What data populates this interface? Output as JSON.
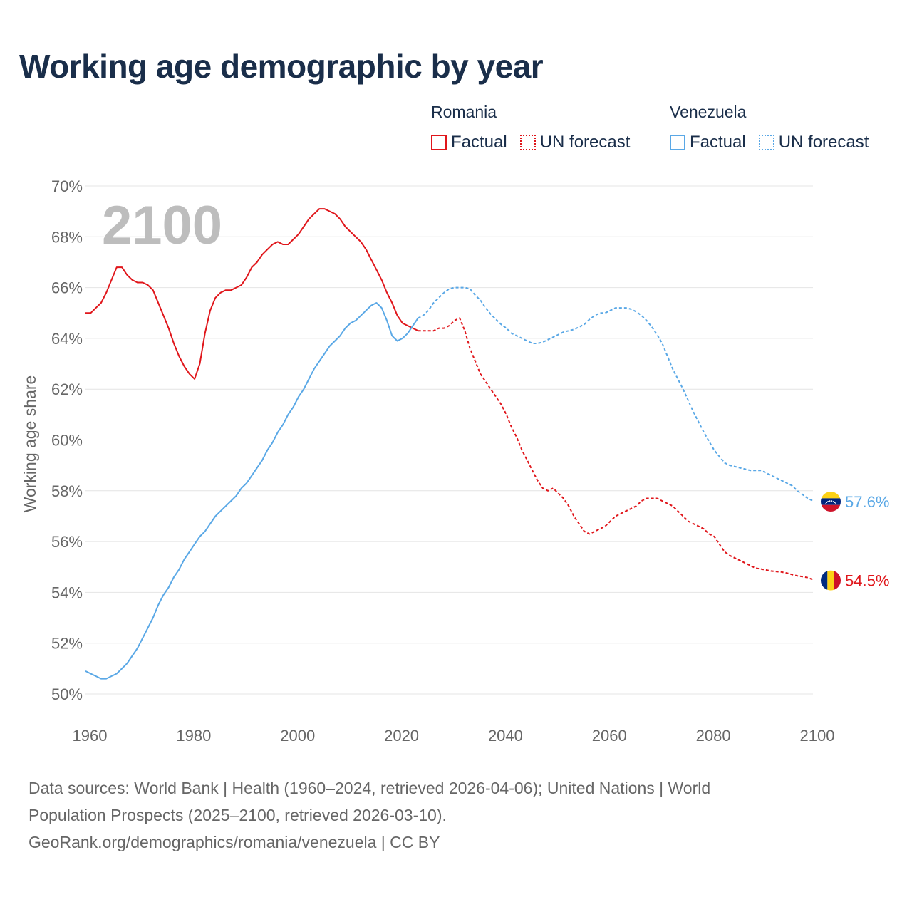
{
  "title": "Working age demographic by year",
  "legend": {
    "groups": [
      {
        "name": "Romania",
        "color": "#e0161b",
        "items": [
          {
            "label": "Factual",
            "style": "solid"
          },
          {
            "label": "UN forecast",
            "style": "dotted"
          }
        ]
      },
      {
        "name": "Venezuela",
        "color": "#5aa8e6",
        "items": [
          {
            "label": "Factual",
            "style": "solid"
          },
          {
            "label": "UN forecast",
            "style": "dotted"
          }
        ]
      }
    ]
  },
  "footer": {
    "line1": "Data sources: World Bank | Health (1960–2024, retrieved 2026-04-06); United Nations | World",
    "line2": "Population Prospects (2025–2100, retrieved 2026-03-10).",
    "line3": "GeoRank.org/demographics/romania/venezuela | CC BY"
  },
  "chart_data": {
    "type": "line",
    "title": "Working age demographic by year",
    "year_watermark": "2100",
    "xlabel": "",
    "ylabel": "Working age share",
    "xlim": [
      1960,
      2100
    ],
    "ylim": [
      50,
      70
    ],
    "x_ticks": [
      1960,
      1980,
      2000,
      2020,
      2040,
      2060,
      2080,
      2100
    ],
    "y_ticks": [
      50,
      52,
      54,
      56,
      58,
      60,
      62,
      64,
      66,
      68,
      70
    ],
    "y_tick_labels": [
      "50%",
      "52%",
      "54%",
      "56%",
      "58%",
      "60%",
      "62%",
      "64%",
      "66%",
      "68%",
      "70%"
    ],
    "factual_end_year": 2024,
    "series": [
      {
        "name": "Romania",
        "color": "#e0161b",
        "end_label": "54.5%",
        "flag": "romania-flag",
        "points": [
          [
            1960,
            65.0
          ],
          [
            1961,
            65.0
          ],
          [
            1962,
            65.2
          ],
          [
            1963,
            65.4
          ],
          [
            1964,
            65.8
          ],
          [
            1965,
            66.3
          ],
          [
            1966,
            66.8
          ],
          [
            1967,
            66.8
          ],
          [
            1968,
            66.5
          ],
          [
            1969,
            66.3
          ],
          [
            1970,
            66.2
          ],
          [
            1971,
            66.2
          ],
          [
            1972,
            66.1
          ],
          [
            1973,
            65.9
          ],
          [
            1974,
            65.4
          ],
          [
            1975,
            64.9
          ],
          [
            1976,
            64.4
          ],
          [
            1977,
            63.8
          ],
          [
            1978,
            63.3
          ],
          [
            1979,
            62.9
          ],
          [
            1980,
            62.6
          ],
          [
            1981,
            62.4
          ],
          [
            1982,
            63.0
          ],
          [
            1983,
            64.2
          ],
          [
            1984,
            65.1
          ],
          [
            1985,
            65.6
          ],
          [
            1986,
            65.8
          ],
          [
            1987,
            65.9
          ],
          [
            1988,
            65.9
          ],
          [
            1989,
            66.0
          ],
          [
            1990,
            66.1
          ],
          [
            1991,
            66.4
          ],
          [
            1992,
            66.8
          ],
          [
            1993,
            67.0
          ],
          [
            1994,
            67.3
          ],
          [
            1995,
            67.5
          ],
          [
            1996,
            67.7
          ],
          [
            1997,
            67.8
          ],
          [
            1998,
            67.7
          ],
          [
            1999,
            67.7
          ],
          [
            2000,
            67.9
          ],
          [
            2001,
            68.1
          ],
          [
            2002,
            68.4
          ],
          [
            2003,
            68.7
          ],
          [
            2004,
            68.9
          ],
          [
            2005,
            69.1
          ],
          [
            2006,
            69.1
          ],
          [
            2007,
            69.0
          ],
          [
            2008,
            68.9
          ],
          [
            2009,
            68.7
          ],
          [
            2010,
            68.4
          ],
          [
            2011,
            68.2
          ],
          [
            2012,
            68.0
          ],
          [
            2013,
            67.8
          ],
          [
            2014,
            67.5
          ],
          [
            2015,
            67.1
          ],
          [
            2016,
            66.7
          ],
          [
            2017,
            66.3
          ],
          [
            2018,
            65.8
          ],
          [
            2019,
            65.4
          ],
          [
            2020,
            64.9
          ],
          [
            2021,
            64.6
          ],
          [
            2022,
            64.5
          ],
          [
            2023,
            64.4
          ],
          [
            2024,
            64.3
          ],
          [
            2025,
            64.3
          ],
          [
            2026,
            64.3
          ],
          [
            2027,
            64.3
          ],
          [
            2028,
            64.4
          ],
          [
            2029,
            64.4
          ],
          [
            2030,
            64.5
          ],
          [
            2031,
            64.7
          ],
          [
            2032,
            64.8
          ],
          [
            2033,
            64.3
          ],
          [
            2034,
            63.6
          ],
          [
            2035,
            63.1
          ],
          [
            2036,
            62.6
          ],
          [
            2037,
            62.3
          ],
          [
            2038,
            62.0
          ],
          [
            2039,
            61.7
          ],
          [
            2040,
            61.4
          ],
          [
            2041,
            61.0
          ],
          [
            2042,
            60.5
          ],
          [
            2043,
            60.1
          ],
          [
            2044,
            59.6
          ],
          [
            2045,
            59.2
          ],
          [
            2046,
            58.8
          ],
          [
            2047,
            58.4
          ],
          [
            2048,
            58.1
          ],
          [
            2049,
            58.0
          ],
          [
            2050,
            58.1
          ],
          [
            2051,
            57.9
          ],
          [
            2052,
            57.7
          ],
          [
            2053,
            57.4
          ],
          [
            2054,
            57.0
          ],
          [
            2055,
            56.7
          ],
          [
            2056,
            56.4
          ],
          [
            2057,
            56.3
          ],
          [
            2058,
            56.4
          ],
          [
            2059,
            56.5
          ],
          [
            2060,
            56.6
          ],
          [
            2061,
            56.8
          ],
          [
            2062,
            57.0
          ],
          [
            2063,
            57.1
          ],
          [
            2064,
            57.2
          ],
          [
            2065,
            57.3
          ],
          [
            2066,
            57.4
          ],
          [
            2067,
            57.6
          ],
          [
            2068,
            57.7
          ],
          [
            2069,
            57.7
          ],
          [
            2070,
            57.7
          ],
          [
            2071,
            57.6
          ],
          [
            2072,
            57.5
          ],
          [
            2073,
            57.4
          ],
          [
            2074,
            57.2
          ],
          [
            2075,
            57.0
          ],
          [
            2076,
            56.8
          ],
          [
            2077,
            56.7
          ],
          [
            2078,
            56.6
          ],
          [
            2079,
            56.5
          ],
          [
            2080,
            56.3
          ],
          [
            2081,
            56.2
          ],
          [
            2082,
            55.9
          ],
          [
            2083,
            55.6
          ],
          [
            2084,
            55.45
          ],
          [
            2085,
            55.35
          ],
          [
            2086,
            55.25
          ],
          [
            2087,
            55.15
          ],
          [
            2088,
            55.05
          ],
          [
            2089,
            54.95
          ],
          [
            2090,
            54.92
          ],
          [
            2091,
            54.88
          ],
          [
            2092,
            54.84
          ],
          [
            2093,
            54.82
          ],
          [
            2094,
            54.8
          ],
          [
            2095,
            54.76
          ],
          [
            2096,
            54.7
          ],
          [
            2097,
            54.65
          ],
          [
            2098,
            54.62
          ],
          [
            2099,
            54.58
          ],
          [
            2100,
            54.5
          ]
        ]
      },
      {
        "name": "Venezuela",
        "color": "#5aa8e6",
        "end_label": "57.6%",
        "flag": "venezuela-flag",
        "points": [
          [
            1960,
            50.9
          ],
          [
            1961,
            50.8
          ],
          [
            1962,
            50.7
          ],
          [
            1963,
            50.6
          ],
          [
            1964,
            50.6
          ],
          [
            1965,
            50.7
          ],
          [
            1966,
            50.8
          ],
          [
            1967,
            51.0
          ],
          [
            1968,
            51.2
          ],
          [
            1969,
            51.5
          ],
          [
            1970,
            51.8
          ],
          [
            1971,
            52.2
          ],
          [
            1972,
            52.6
          ],
          [
            1973,
            53.0
          ],
          [
            1974,
            53.5
          ],
          [
            1975,
            53.9
          ],
          [
            1976,
            54.2
          ],
          [
            1977,
            54.6
          ],
          [
            1978,
            54.9
          ],
          [
            1979,
            55.3
          ],
          [
            1980,
            55.6
          ],
          [
            1981,
            55.9
          ],
          [
            1982,
            56.2
          ],
          [
            1983,
            56.4
          ],
          [
            1984,
            56.7
          ],
          [
            1985,
            57.0
          ],
          [
            1986,
            57.2
          ],
          [
            1987,
            57.4
          ],
          [
            1988,
            57.6
          ],
          [
            1989,
            57.8
          ],
          [
            1990,
            58.1
          ],
          [
            1991,
            58.3
          ],
          [
            1992,
            58.6
          ],
          [
            1993,
            58.9
          ],
          [
            1994,
            59.2
          ],
          [
            1995,
            59.6
          ],
          [
            1996,
            59.9
          ],
          [
            1997,
            60.3
          ],
          [
            1998,
            60.6
          ],
          [
            1999,
            61.0
          ],
          [
            2000,
            61.3
          ],
          [
            2001,
            61.7
          ],
          [
            2002,
            62.0
          ],
          [
            2003,
            62.4
          ],
          [
            2004,
            62.8
          ],
          [
            2005,
            63.1
          ],
          [
            2006,
            63.4
          ],
          [
            2007,
            63.7
          ],
          [
            2008,
            63.9
          ],
          [
            2009,
            64.1
          ],
          [
            2010,
            64.4
          ],
          [
            2011,
            64.6
          ],
          [
            2012,
            64.7
          ],
          [
            2013,
            64.9
          ],
          [
            2014,
            65.1
          ],
          [
            2015,
            65.3
          ],
          [
            2016,
            65.4
          ],
          [
            2017,
            65.2
          ],
          [
            2018,
            64.7
          ],
          [
            2019,
            64.1
          ],
          [
            2020,
            63.9
          ],
          [
            2021,
            64.0
          ],
          [
            2022,
            64.2
          ],
          [
            2023,
            64.5
          ],
          [
            2024,
            64.8
          ],
          [
            2025,
            64.9
          ],
          [
            2026,
            65.1
          ],
          [
            2027,
            65.4
          ],
          [
            2028,
            65.6
          ],
          [
            2029,
            65.8
          ],
          [
            2030,
            65.95
          ],
          [
            2031,
            66.0
          ],
          [
            2032,
            66.0
          ],
          [
            2033,
            66.0
          ],
          [
            2034,
            65.95
          ],
          [
            2035,
            65.7
          ],
          [
            2036,
            65.5
          ],
          [
            2037,
            65.2
          ],
          [
            2038,
            64.95
          ],
          [
            2039,
            64.75
          ],
          [
            2040,
            64.55
          ],
          [
            2041,
            64.4
          ],
          [
            2042,
            64.2
          ],
          [
            2043,
            64.1
          ],
          [
            2044,
            64.0
          ],
          [
            2045,
            63.9
          ],
          [
            2046,
            63.8
          ],
          [
            2047,
            63.8
          ],
          [
            2048,
            63.85
          ],
          [
            2049,
            63.95
          ],
          [
            2050,
            64.05
          ],
          [
            2051,
            64.15
          ],
          [
            2052,
            64.25
          ],
          [
            2053,
            64.3
          ],
          [
            2054,
            64.35
          ],
          [
            2055,
            64.45
          ],
          [
            2056,
            64.55
          ],
          [
            2057,
            64.75
          ],
          [
            2058,
            64.9
          ],
          [
            2059,
            65.0
          ],
          [
            2060,
            65.0
          ],
          [
            2061,
            65.1
          ],
          [
            2062,
            65.2
          ],
          [
            2063,
            65.2
          ],
          [
            2064,
            65.2
          ],
          [
            2065,
            65.15
          ],
          [
            2066,
            65.05
          ],
          [
            2067,
            64.9
          ],
          [
            2068,
            64.7
          ],
          [
            2069,
            64.45
          ],
          [
            2070,
            64.15
          ],
          [
            2071,
            63.8
          ],
          [
            2072,
            63.3
          ],
          [
            2073,
            62.8
          ],
          [
            2074,
            62.4
          ],
          [
            2075,
            62.0
          ],
          [
            2076,
            61.55
          ],
          [
            2077,
            61.1
          ],
          [
            2078,
            60.7
          ],
          [
            2079,
            60.3
          ],
          [
            2080,
            59.95
          ],
          [
            2081,
            59.6
          ],
          [
            2082,
            59.35
          ],
          [
            2083,
            59.1
          ],
          [
            2084,
            59.0
          ],
          [
            2085,
            58.95
          ],
          [
            2086,
            58.9
          ],
          [
            2087,
            58.85
          ],
          [
            2088,
            58.8
          ],
          [
            2089,
            58.8
          ],
          [
            2090,
            58.8
          ],
          [
            2091,
            58.7
          ],
          [
            2092,
            58.6
          ],
          [
            2093,
            58.5
          ],
          [
            2094,
            58.4
          ],
          [
            2095,
            58.3
          ],
          [
            2096,
            58.2
          ],
          [
            2097,
            58.0
          ],
          [
            2098,
            57.85
          ],
          [
            2099,
            57.7
          ],
          [
            2100,
            57.6
          ]
        ]
      }
    ]
  }
}
